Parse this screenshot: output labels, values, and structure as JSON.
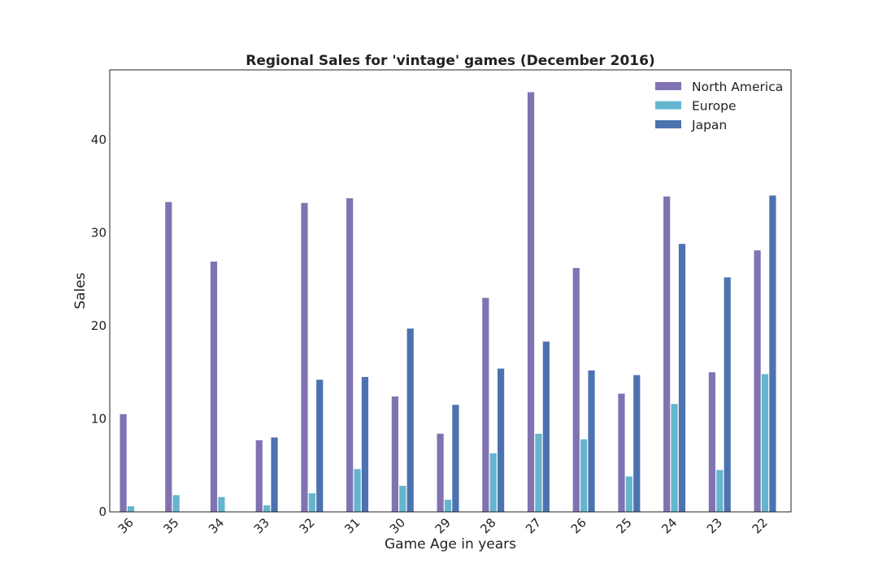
{
  "chart_data": {
    "type": "bar",
    "title": "Regional Sales for 'vintage' games (December 2016)",
    "xlabel": "Game Age in years",
    "ylabel": "Sales",
    "categories": [
      "36",
      "35",
      "34",
      "33",
      "32",
      "31",
      "30",
      "29",
      "28",
      "27",
      "26",
      "25",
      "24",
      "23",
      "22"
    ],
    "series": [
      {
        "name": "North America",
        "color": "#8172b2",
        "values": [
          10.5,
          33.3,
          26.9,
          7.7,
          33.2,
          33.7,
          12.4,
          8.4,
          23.0,
          45.1,
          26.2,
          12.7,
          33.9,
          15.0,
          28.1
        ]
      },
      {
        "name": "Europe",
        "color": "#64b5cd",
        "values": [
          0.6,
          1.8,
          1.6,
          0.7,
          2.0,
          4.6,
          2.8,
          1.3,
          6.3,
          8.4,
          7.8,
          3.8,
          11.6,
          4.5,
          14.8
        ]
      },
      {
        "name": "Japan",
        "color": "#4c72b0",
        "values": [
          0,
          0,
          0,
          8.0,
          14.2,
          14.5,
          19.7,
          11.5,
          15.4,
          18.3,
          15.2,
          14.7,
          28.8,
          25.2,
          34.0
        ]
      }
    ],
    "yticks": [
      0,
      10,
      20,
      30,
      40
    ],
    "ylim": [
      0,
      47.5
    ],
    "grid": false,
    "legend_position": "top-right"
  }
}
